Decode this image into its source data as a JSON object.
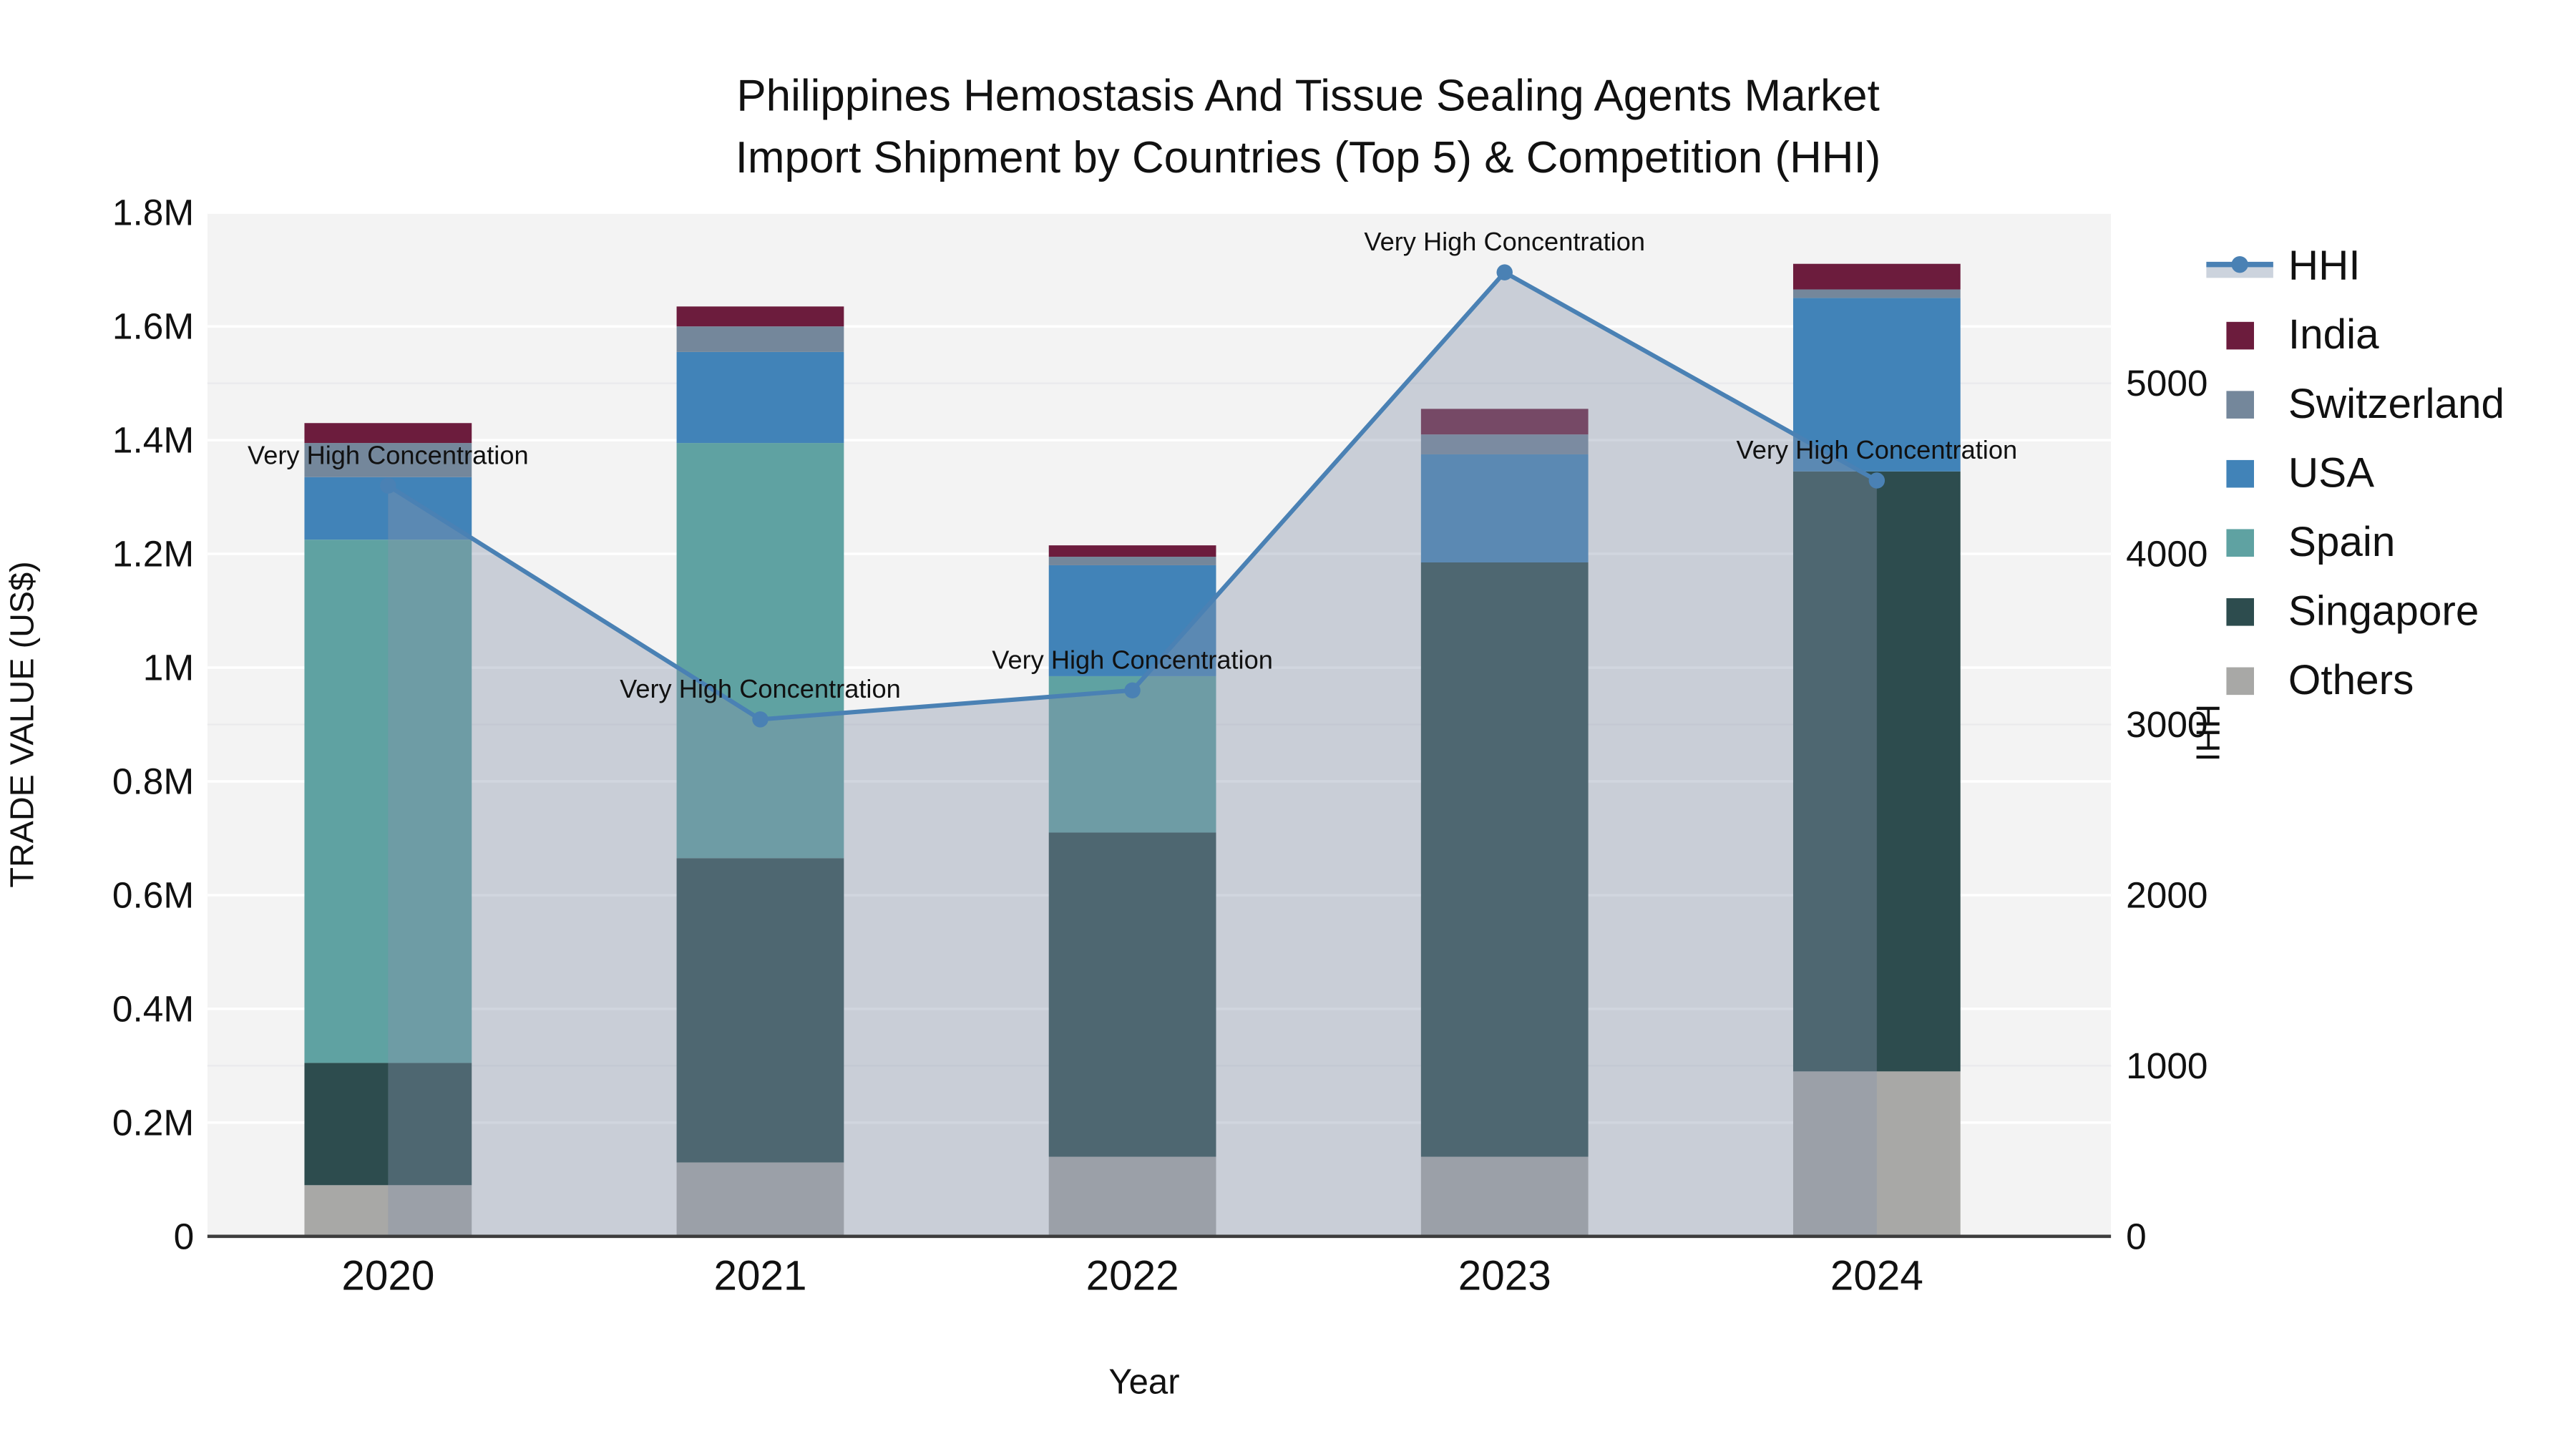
{
  "title": {
    "line1": "Philippines Hemostasis And Tissue Sealing Agents Market",
    "line2": "Import Shipment by Countries (Top 5) & Competition (HHI)"
  },
  "axes": {
    "x": {
      "label": "Year",
      "categories": [
        "2020",
        "2021",
        "2022",
        "2023",
        "2024"
      ]
    },
    "y_left": {
      "label": "TRADE VALUE (US$)",
      "tick_labels": [
        "0",
        "0.2M",
        "0.4M",
        "0.6M",
        "0.8M",
        "1M",
        "1.2M",
        "1.4M",
        "1.6M",
        "1.8M"
      ],
      "tick_values": [
        0,
        200000,
        400000,
        600000,
        800000,
        1000000,
        1200000,
        1400000,
        1600000,
        1800000
      ],
      "max": 1800000
    },
    "y_right": {
      "label": "HHI",
      "tick_labels": [
        "0",
        "1000",
        "2000",
        "3000",
        "4000",
        "5000"
      ],
      "tick_values": [
        0,
        1000,
        2000,
        3000,
        4000,
        5000
      ],
      "max": 6000
    }
  },
  "legend": {
    "items": [
      {
        "label": "HHI",
        "type": "line",
        "color": "#4a81b4",
        "band_color": "#ccd3dd"
      },
      {
        "label": "India",
        "type": "swatch",
        "color": "#6c1c3d"
      },
      {
        "label": "Switzerland",
        "type": "swatch",
        "color": "#74879b"
      },
      {
        "label": "USA",
        "type": "swatch",
        "color": "#4183b8"
      },
      {
        "label": "Spain",
        "type": "swatch",
        "color": "#5fa2a2"
      },
      {
        "label": "Singapore",
        "type": "swatch",
        "color": "#2d4c4e"
      },
      {
        "label": "Others",
        "type": "swatch",
        "color": "#a8a8a6"
      }
    ]
  },
  "chart_data": {
    "type": "bar+line",
    "title": "Philippines Hemostasis And Tissue Sealing Agents Market Import Shipment by Countries (Top 5) & Competition (HHI)",
    "xlabel": "Year",
    "ylabel_left": "TRADE VALUE (US$)",
    "ylabel_right": "HHI",
    "categories": [
      "2020",
      "2021",
      "2022",
      "2023",
      "2024"
    ],
    "bar_stack_bottom_to_top": [
      "Others",
      "Singapore",
      "Spain",
      "USA",
      "Switzerland",
      "India"
    ],
    "series": [
      {
        "name": "Others",
        "type": "bar",
        "color": "#a8a8a6",
        "values": [
          90000,
          130000,
          140000,
          140000,
          290000
        ]
      },
      {
        "name": "Singapore",
        "type": "bar",
        "color": "#2d4c4e",
        "values": [
          215000,
          535000,
          570000,
          1045000,
          1055000
        ]
      },
      {
        "name": "Spain",
        "type": "bar",
        "color": "#5fa2a2",
        "values": [
          920000,
          730000,
          275000,
          0,
          0
        ]
      },
      {
        "name": "USA",
        "type": "bar",
        "color": "#4183b8",
        "values": [
          110000,
          160000,
          195000,
          190000,
          305000
        ]
      },
      {
        "name": "Switzerland",
        "type": "bar",
        "color": "#74879b",
        "values": [
          60000,
          45000,
          15000,
          35000,
          15000
        ]
      },
      {
        "name": "India",
        "type": "bar",
        "color": "#6c1c3d",
        "values": [
          35000,
          35000,
          20000,
          45000,
          45000
        ]
      }
    ],
    "bar_totals": [
      1430000,
      1635000,
      1215000,
      1455000,
      1710000
    ],
    "line_series": {
      "name": "HHI",
      "color": "#4a81b4",
      "area_fill": "rgba(134,146,172,0.38)",
      "values": [
        4400,
        3030,
        3200,
        5650,
        4430
      ]
    },
    "annotations": [
      {
        "category": "2020",
        "text": "Very High Concentration"
      },
      {
        "category": "2021",
        "text": "Very High Concentration"
      },
      {
        "category": "2022",
        "text": "Very High Concentration"
      },
      {
        "category": "2023",
        "text": "Very High Concentration"
      },
      {
        "category": "2024",
        "text": "Very High Concentration"
      }
    ],
    "ylim_left": [
      0,
      1800000
    ],
    "ylim_right": [
      0,
      6000
    ],
    "grid": true,
    "legend_position": "right",
    "plot_background": "#f3f3f3"
  }
}
